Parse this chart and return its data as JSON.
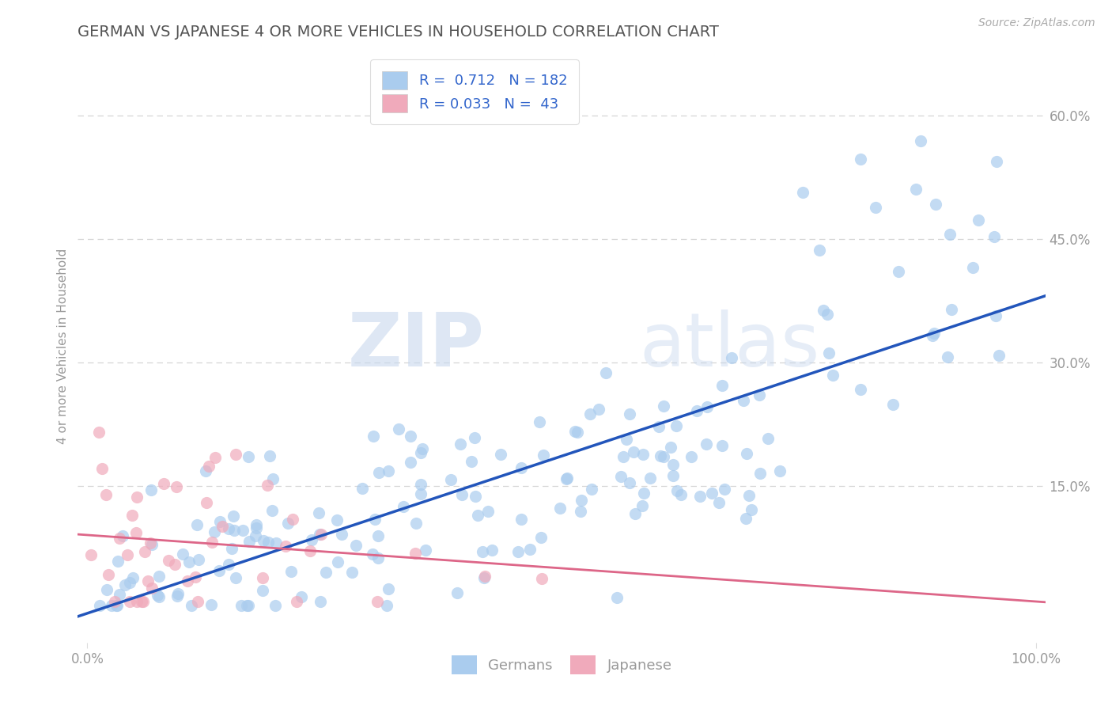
{
  "title": "GERMAN VS JAPANESE 4 OR MORE VEHICLES IN HOUSEHOLD CORRELATION CHART",
  "source_text": "Source: ZipAtlas.com",
  "ylabel": "4 or more Vehicles in Household",
  "watermark_zip": "ZIP",
  "watermark_atlas": "atlas",
  "legend_german_R": "0.712",
  "legend_german_N": "182",
  "legend_japanese_R": "0.033",
  "legend_japanese_N": "43",
  "xlim": [
    -0.01,
    1.01
  ],
  "ylim": [
    -0.04,
    0.68
  ],
  "xtick_vals": [
    0.0,
    1.0
  ],
  "xtick_labels": [
    "0.0%",
    "100.0%"
  ],
  "ytick_labels": [
    "15.0%",
    "30.0%",
    "45.0%",
    "60.0%"
  ],
  "ytick_values": [
    0.15,
    0.3,
    0.45,
    0.6
  ],
  "german_color": "#aaccee",
  "japanese_color": "#f0aabb",
  "german_line_color": "#2255bb",
  "japanese_line_color": "#dd6688",
  "background_color": "#ffffff",
  "grid_color": "#cccccc",
  "title_color": "#555555",
  "title_fontsize": 14,
  "axis_label_color": "#999999",
  "tick_label_color": "#999999",
  "legend_color": "#3366cc"
}
